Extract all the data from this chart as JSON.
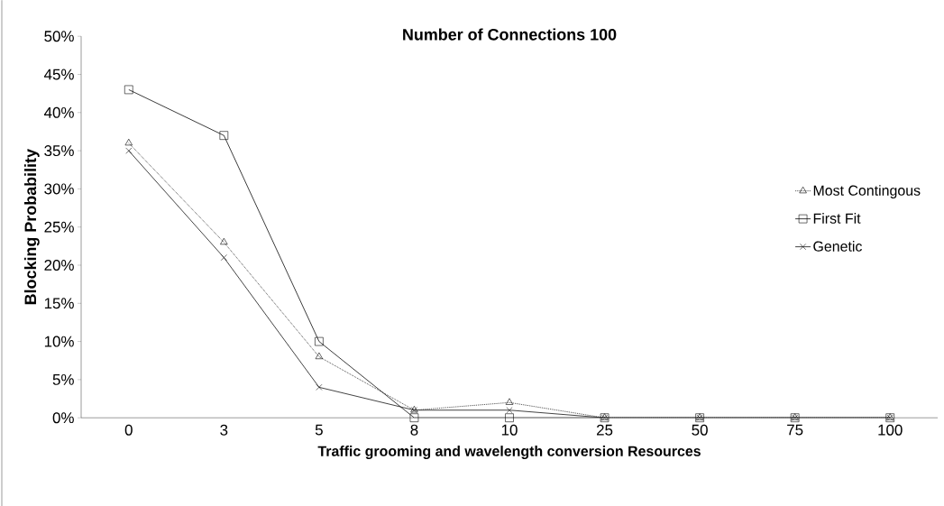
{
  "chart_data": {
    "type": "line",
    "title": "Number of Connections 100",
    "xlabel": "Traffic grooming and wavelength conversion Resources",
    "ylabel": "Blocking Probability",
    "categories": [
      "0",
      "3",
      "5",
      "8",
      "10",
      "25",
      "50",
      "75",
      "100"
    ],
    "series": [
      {
        "name": "Most Contingous",
        "color": "#000000",
        "marker": "triangle",
        "line_style": "dotted",
        "values": [
          36,
          23,
          8,
          1,
          2,
          0,
          0,
          0,
          0
        ]
      },
      {
        "name": "First Fit",
        "color": "#0a0a0a",
        "marker": "square",
        "line_style": "solid",
        "values": [
          43,
          37,
          10,
          0,
          0,
          0,
          0,
          0,
          0
        ]
      },
      {
        "name": "Genetic",
        "color": "#141414",
        "marker": "cross",
        "line_style": "solid",
        "values": [
          35,
          21,
          4,
          1,
          1,
          0,
          0,
          0,
          0
        ]
      }
    ],
    "ylim": [
      0,
      50
    ],
    "yticks": [
      {
        "value": 0,
        "label": "0%"
      },
      {
        "value": 5,
        "label": "5%"
      },
      {
        "value": 10,
        "label": "10%"
      },
      {
        "value": 15,
        "label": "15%"
      },
      {
        "value": 20,
        "label": "20%"
      },
      {
        "value": 25,
        "label": "25%"
      },
      {
        "value": 30,
        "label": "30%"
      },
      {
        "value": 35,
        "label": "35%"
      },
      {
        "value": 40,
        "label": "40%"
      },
      {
        "value": 45,
        "label": "45%"
      },
      {
        "value": 50,
        "label": "50%"
      }
    ],
    "grid": false,
    "legend": "right"
  }
}
